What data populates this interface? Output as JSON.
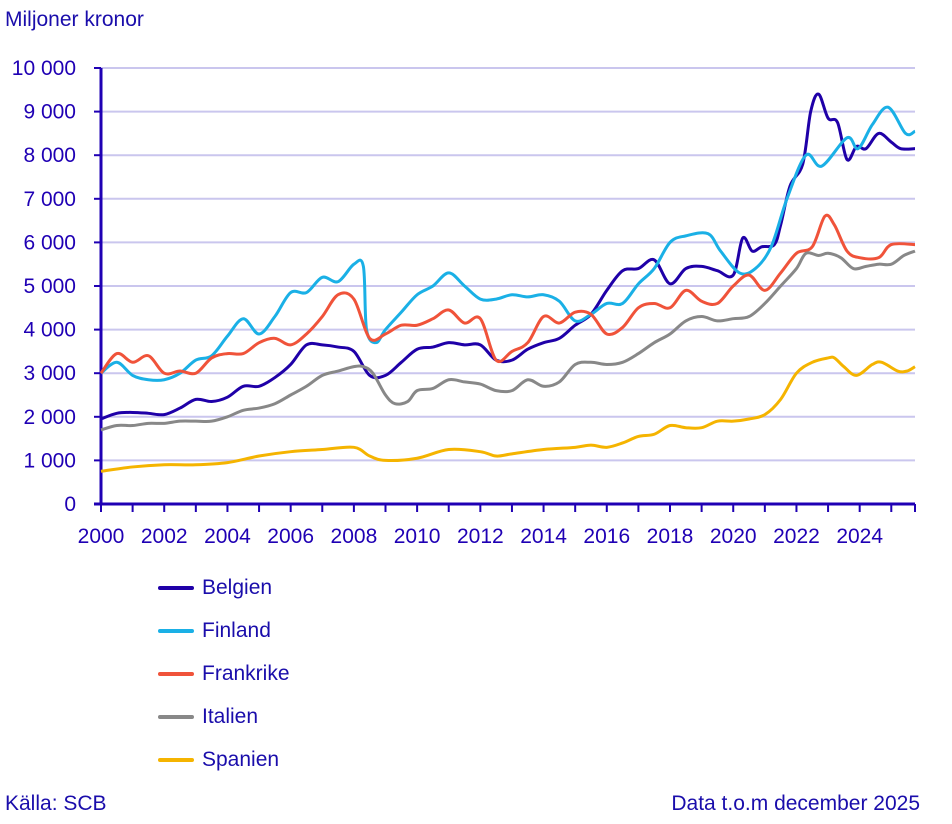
{
  "chart_data": {
    "type": "line",
    "ylabel": "Miljoner kronor",
    "ylim": [
      0,
      10000
    ],
    "yticks": [
      0,
      1000,
      2000,
      3000,
      4000,
      5000,
      6000,
      7000,
      8000,
      9000,
      10000
    ],
    "ytick_labels": [
      "0",
      "1 000",
      "2 000",
      "3 000",
      "4 000",
      "5 000",
      "6 000",
      "7 000",
      "8 000",
      "9 000",
      "10 000"
    ],
    "xlim": [
      2000,
      2025.75
    ],
    "xtick_labels": [
      "2000",
      "2002",
      "2004",
      "2006",
      "2008",
      "2010",
      "2012",
      "2014",
      "2016",
      "2018",
      "2020",
      "2022",
      "2024"
    ],
    "grid": true,
    "legend_position": "bottom-left",
    "series": [
      {
        "name": "Belgien",
        "color": "#1f00a8",
        "points": [
          [
            2000,
            1950
          ],
          [
            2000.5,
            2080
          ],
          [
            2001,
            2100
          ],
          [
            2001.5,
            2080
          ],
          [
            2002,
            2050
          ],
          [
            2002.5,
            2200
          ],
          [
            2003,
            2400
          ],
          [
            2003.5,
            2350
          ],
          [
            2004,
            2450
          ],
          [
            2004.5,
            2700
          ],
          [
            2005,
            2700
          ],
          [
            2005.5,
            2900
          ],
          [
            2006,
            3200
          ],
          [
            2006.5,
            3650
          ],
          [
            2007,
            3650
          ],
          [
            2007.5,
            3600
          ],
          [
            2008,
            3500
          ],
          [
            2008.5,
            2950
          ],
          [
            2009,
            2950
          ],
          [
            2009.5,
            3250
          ],
          [
            2010,
            3550
          ],
          [
            2010.5,
            3600
          ],
          [
            2011,
            3700
          ],
          [
            2011.5,
            3650
          ],
          [
            2012,
            3650
          ],
          [
            2012.5,
            3300
          ],
          [
            2013,
            3300
          ],
          [
            2013.5,
            3550
          ],
          [
            2014,
            3700
          ],
          [
            2014.5,
            3800
          ],
          [
            2015,
            4100
          ],
          [
            2015.5,
            4350
          ],
          [
            2016,
            4900
          ],
          [
            2016.5,
            5350
          ],
          [
            2017,
            5400
          ],
          [
            2017.5,
            5600
          ],
          [
            2018,
            5050
          ],
          [
            2018.5,
            5400
          ],
          [
            2019,
            5450
          ],
          [
            2019.5,
            5350
          ],
          [
            2020,
            5250
          ],
          [
            2020.3,
            6100
          ],
          [
            2020.6,
            5800
          ],
          [
            2020.9,
            5900
          ],
          [
            2021.3,
            5950
          ],
          [
            2021.5,
            6400
          ],
          [
            2021.8,
            7300
          ],
          [
            2022.2,
            7800
          ],
          [
            2022.45,
            9000
          ],
          [
            2022.7,
            9400
          ],
          [
            2023,
            8850
          ],
          [
            2023.3,
            8750
          ],
          [
            2023.6,
            7900
          ],
          [
            2023.9,
            8200
          ],
          [
            2024.2,
            8150
          ],
          [
            2024.6,
            8500
          ],
          [
            2025,
            8300
          ],
          [
            2025.3,
            8150
          ],
          [
            2025.75,
            8150
          ]
        ]
      },
      {
        "name": "Finland",
        "color": "#1ab0e6",
        "points": [
          [
            2000,
            3000
          ],
          [
            2000.5,
            3250
          ],
          [
            2001,
            2950
          ],
          [
            2001.5,
            2850
          ],
          [
            2002,
            2850
          ],
          [
            2002.5,
            3000
          ],
          [
            2003,
            3300
          ],
          [
            2003.5,
            3400
          ],
          [
            2004,
            3850
          ],
          [
            2004.5,
            4250
          ],
          [
            2005,
            3900
          ],
          [
            2005.5,
            4300
          ],
          [
            2006,
            4850
          ],
          [
            2006.5,
            4850
          ],
          [
            2007,
            5200
          ],
          [
            2007.5,
            5100
          ],
          [
            2008,
            5500
          ],
          [
            2008.3,
            5450
          ],
          [
            2008.4,
            4000
          ],
          [
            2008.7,
            3700
          ],
          [
            2009,
            4000
          ],
          [
            2009.5,
            4400
          ],
          [
            2010,
            4800
          ],
          [
            2010.5,
            5000
          ],
          [
            2011,
            5300
          ],
          [
            2011.5,
            5000
          ],
          [
            2012,
            4700
          ],
          [
            2012.5,
            4700
          ],
          [
            2013,
            4800
          ],
          [
            2013.5,
            4750
          ],
          [
            2014,
            4800
          ],
          [
            2014.5,
            4650
          ],
          [
            2015,
            4200
          ],
          [
            2015.5,
            4350
          ],
          [
            2016,
            4600
          ],
          [
            2016.5,
            4600
          ],
          [
            2017,
            5050
          ],
          [
            2017.5,
            5400
          ],
          [
            2018,
            6000
          ],
          [
            2018.5,
            6150
          ],
          [
            2019.2,
            6200
          ],
          [
            2019.6,
            5800
          ],
          [
            2020.2,
            5300
          ],
          [
            2020.7,
            5400
          ],
          [
            2021.2,
            5900
          ],
          [
            2021.7,
            7000
          ],
          [
            2022.3,
            8000
          ],
          [
            2022.8,
            7750
          ],
          [
            2023.6,
            8400
          ],
          [
            2023.95,
            8150
          ],
          [
            2024.4,
            8700
          ],
          [
            2024.9,
            9100
          ],
          [
            2025.45,
            8500
          ],
          [
            2025.75,
            8550
          ]
        ]
      },
      {
        "name": "Frankrike",
        "color": "#f0533a",
        "points": [
          [
            2000,
            3000
          ],
          [
            2000.5,
            3450
          ],
          [
            2001,
            3250
          ],
          [
            2001.5,
            3400
          ],
          [
            2002,
            3000
          ],
          [
            2002.5,
            3050
          ],
          [
            2003,
            3000
          ],
          [
            2003.5,
            3350
          ],
          [
            2004,
            3450
          ],
          [
            2004.5,
            3450
          ],
          [
            2005,
            3700
          ],
          [
            2005.5,
            3800
          ],
          [
            2006,
            3650
          ],
          [
            2006.5,
            3900
          ],
          [
            2007,
            4300
          ],
          [
            2007.5,
            4800
          ],
          [
            2008,
            4700
          ],
          [
            2008.5,
            3800
          ],
          [
            2009,
            3900
          ],
          [
            2009.5,
            4100
          ],
          [
            2010,
            4100
          ],
          [
            2010.5,
            4250
          ],
          [
            2011,
            4450
          ],
          [
            2011.5,
            4150
          ],
          [
            2012,
            4250
          ],
          [
            2012.5,
            3300
          ],
          [
            2013,
            3500
          ],
          [
            2013.5,
            3700
          ],
          [
            2014,
            4300
          ],
          [
            2014.5,
            4150
          ],
          [
            2015,
            4400
          ],
          [
            2015.5,
            4350
          ],
          [
            2016,
            3900
          ],
          [
            2016.5,
            4050
          ],
          [
            2017,
            4500
          ],
          [
            2017.5,
            4600
          ],
          [
            2018,
            4500
          ],
          [
            2018.5,
            4900
          ],
          [
            2019,
            4650
          ],
          [
            2019.5,
            4600
          ],
          [
            2020,
            5000
          ],
          [
            2020.5,
            5250
          ],
          [
            2021,
            4900
          ],
          [
            2021.5,
            5300
          ],
          [
            2022,
            5750
          ],
          [
            2022.5,
            5900
          ],
          [
            2022.9,
            6600
          ],
          [
            2023.2,
            6400
          ],
          [
            2023.6,
            5800
          ],
          [
            2024,
            5650
          ],
          [
            2024.6,
            5650
          ],
          [
            2025,
            5950
          ],
          [
            2025.75,
            5950
          ]
        ]
      },
      {
        "name": "Italien",
        "color": "#888888",
        "points": [
          [
            2000,
            1700
          ],
          [
            2000.5,
            1800
          ],
          [
            2001,
            1800
          ],
          [
            2001.5,
            1850
          ],
          [
            2002,
            1850
          ],
          [
            2002.5,
            1900
          ],
          [
            2003,
            1900
          ],
          [
            2003.5,
            1900
          ],
          [
            2004,
            2000
          ],
          [
            2004.5,
            2150
          ],
          [
            2005,
            2200
          ],
          [
            2005.5,
            2300
          ],
          [
            2006,
            2500
          ],
          [
            2006.5,
            2700
          ],
          [
            2007,
            2950
          ],
          [
            2007.5,
            3050
          ],
          [
            2008,
            3150
          ],
          [
            2008.3,
            3150
          ],
          [
            2008.6,
            3000
          ],
          [
            2009,
            2500
          ],
          [
            2009.3,
            2300
          ],
          [
            2009.7,
            2350
          ],
          [
            2010,
            2600
          ],
          [
            2010.5,
            2650
          ],
          [
            2011,
            2850
          ],
          [
            2011.5,
            2800
          ],
          [
            2012,
            2750
          ],
          [
            2012.5,
            2600
          ],
          [
            2013,
            2600
          ],
          [
            2013.5,
            2850
          ],
          [
            2014,
            2700
          ],
          [
            2014.5,
            2800
          ],
          [
            2015,
            3200
          ],
          [
            2015.5,
            3250
          ],
          [
            2016,
            3200
          ],
          [
            2016.5,
            3250
          ],
          [
            2017,
            3450
          ],
          [
            2017.5,
            3700
          ],
          [
            2018,
            3900
          ],
          [
            2018.5,
            4200
          ],
          [
            2019,
            4300
          ],
          [
            2019.5,
            4200
          ],
          [
            2020,
            4250
          ],
          [
            2020.5,
            4300
          ],
          [
            2021,
            4600
          ],
          [
            2021.5,
            5000
          ],
          [
            2022,
            5400
          ],
          [
            2022.3,
            5750
          ],
          [
            2022.7,
            5700
          ],
          [
            2023,
            5750
          ],
          [
            2023.4,
            5650
          ],
          [
            2023.8,
            5400
          ],
          [
            2024.2,
            5450
          ],
          [
            2024.6,
            5500
          ],
          [
            2025,
            5500
          ],
          [
            2025.4,
            5700
          ],
          [
            2025.75,
            5800
          ]
        ]
      },
      {
        "name": "Spanien",
        "color": "#f5b400",
        "points": [
          [
            2000,
            750
          ],
          [
            2001,
            850
          ],
          [
            2002,
            900
          ],
          [
            2003,
            900
          ],
          [
            2004,
            950
          ],
          [
            2005,
            1100
          ],
          [
            2006,
            1200
          ],
          [
            2007,
            1250
          ],
          [
            2008,
            1300
          ],
          [
            2008.5,
            1100
          ],
          [
            2009,
            1000
          ],
          [
            2010,
            1050
          ],
          [
            2011,
            1250
          ],
          [
            2012,
            1200
          ],
          [
            2012.5,
            1100
          ],
          [
            2013,
            1150
          ],
          [
            2014,
            1250
          ],
          [
            2015,
            1300
          ],
          [
            2015.5,
            1350
          ],
          [
            2016,
            1300
          ],
          [
            2016.5,
            1400
          ],
          [
            2017,
            1550
          ],
          [
            2017.5,
            1600
          ],
          [
            2018,
            1800
          ],
          [
            2018.5,
            1750
          ],
          [
            2019,
            1750
          ],
          [
            2019.5,
            1900
          ],
          [
            2020,
            1900
          ],
          [
            2020.5,
            1950
          ],
          [
            2021,
            2050
          ],
          [
            2021.5,
            2400
          ],
          [
            2022,
            3000
          ],
          [
            2022.5,
            3250
          ],
          [
            2023,
            3350
          ],
          [
            2023.2,
            3350
          ],
          [
            2023.5,
            3150
          ],
          [
            2023.9,
            2950
          ],
          [
            2024.4,
            3200
          ],
          [
            2024.7,
            3250
          ],
          [
            2025.2,
            3050
          ],
          [
            2025.5,
            3050
          ],
          [
            2025.75,
            3150
          ]
        ]
      }
    ]
  },
  "footer": {
    "source": "Källa: SCB",
    "data_note": "Data t.o.m december 2025"
  }
}
